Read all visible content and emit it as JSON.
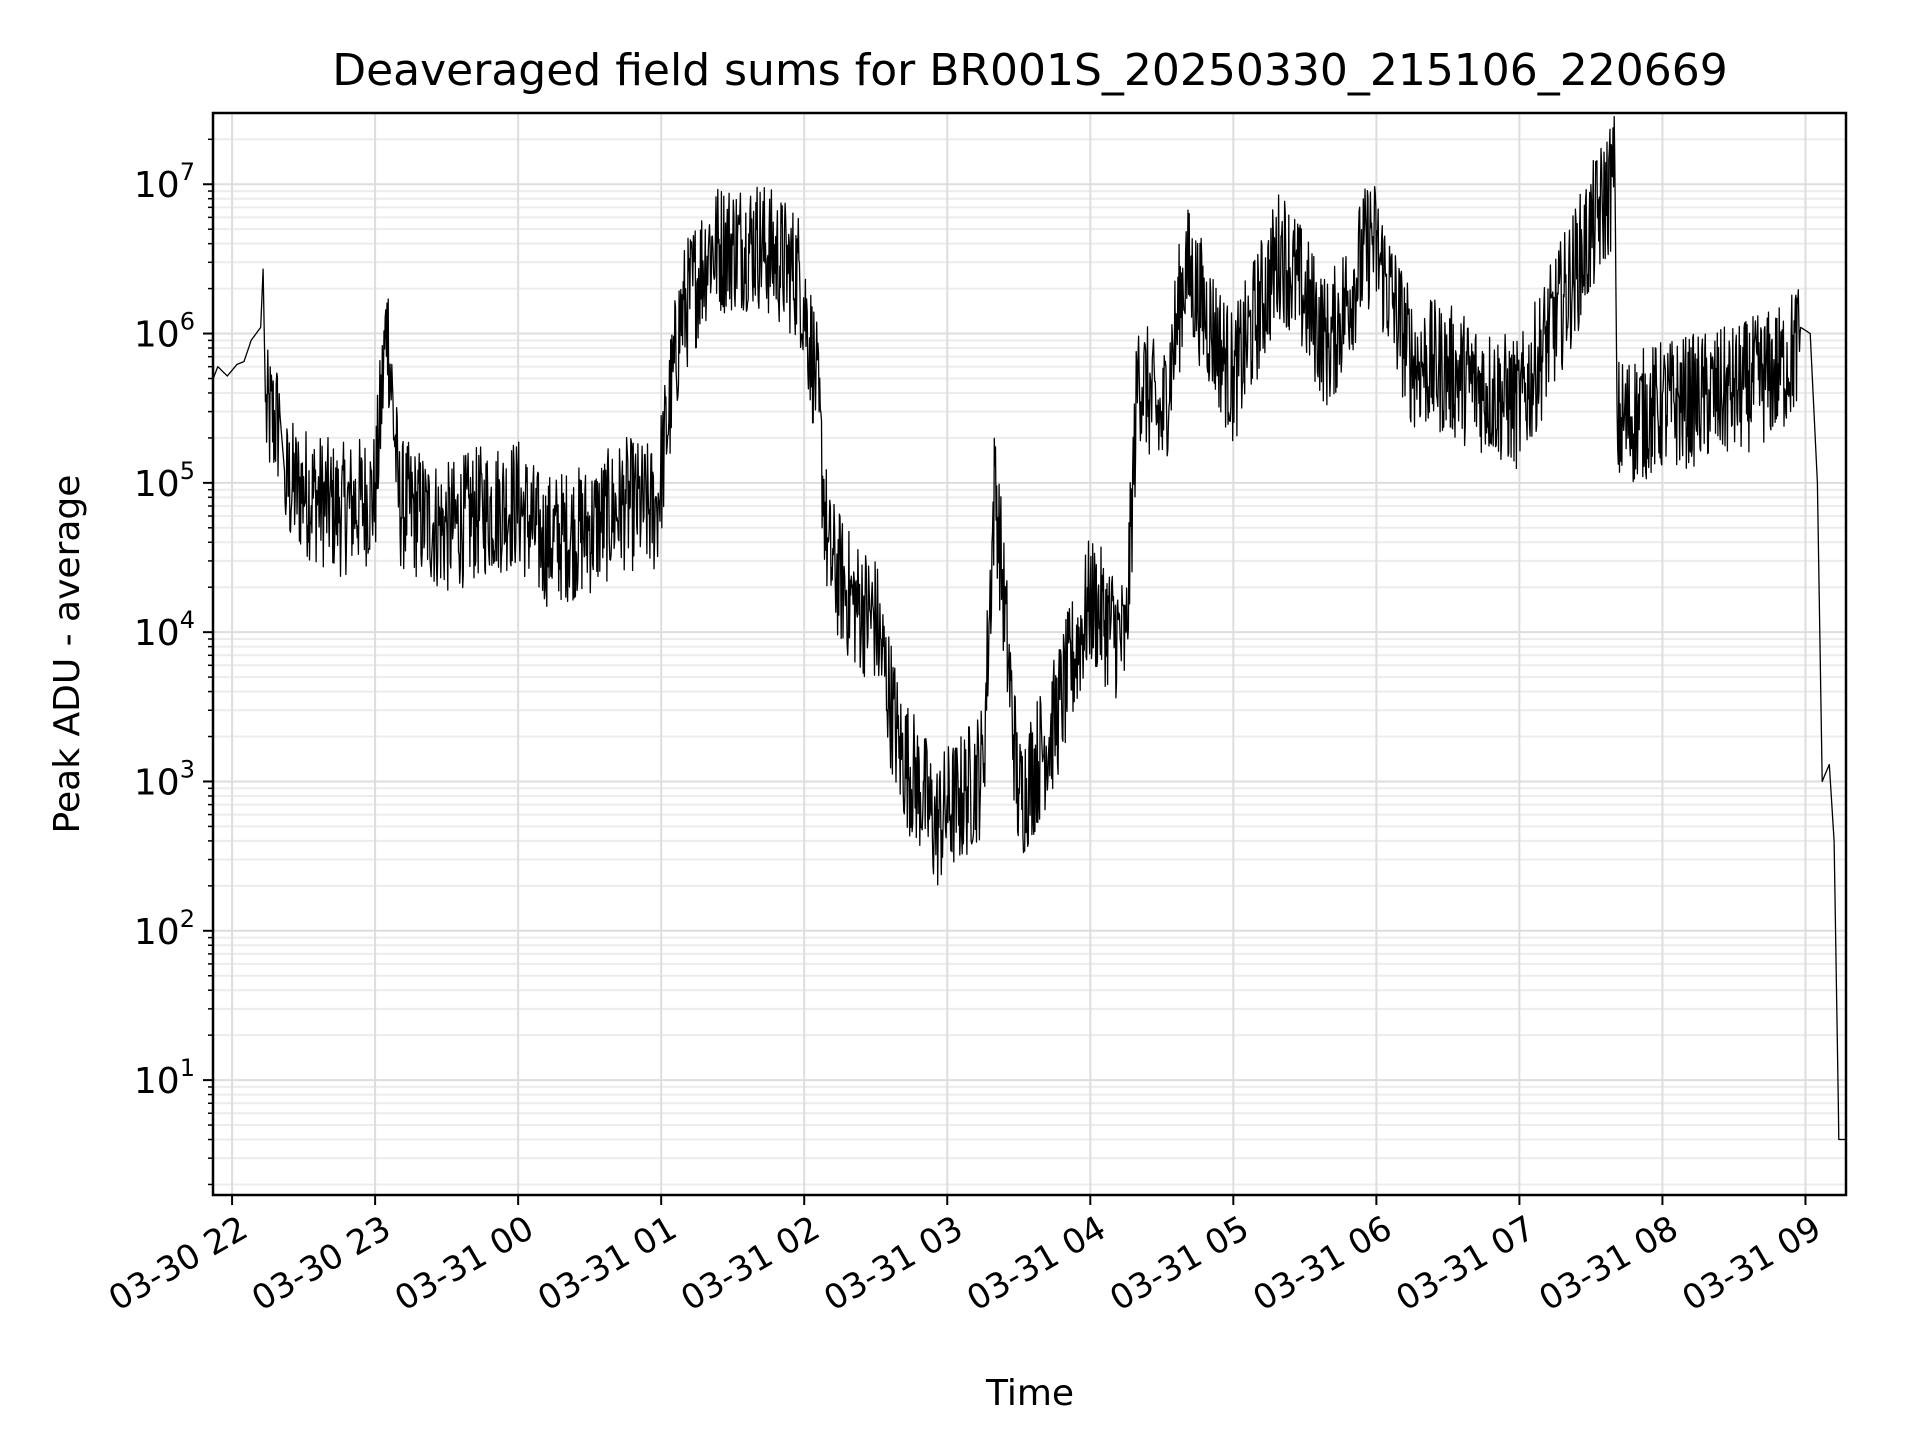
{
  "chart_data": {
    "type": "line",
    "title": "Deaveraged field sums for BR001S_20250330_215106_220669",
    "xlabel": "Time",
    "ylabel": "Peak ADU - average",
    "yscale": "log",
    "grid": true,
    "line_color": "#000000",
    "x_tick_labels": [
      "03-30 22",
      "03-30 23",
      "03-31 00",
      "03-31 01",
      "03-31 02",
      "03-31 03",
      "03-31 04",
      "03-31 05",
      "03-31 06",
      "03-31 07",
      "03-31 08",
      "03-31 09"
    ],
    "x_ticks": [
      "2025-03-30 22:00",
      "2025-03-30 23:00",
      "2025-03-31 00:00",
      "2025-03-31 01:00",
      "2025-03-31 02:00",
      "2025-03-31 03:00",
      "2025-03-31 04:00",
      "2025-03-31 05:00",
      "2025-03-31 06:00",
      "2025-03-31 07:00",
      "2025-03-31 08:00",
      "2025-03-31 09:00"
    ],
    "y_ticks": [
      {
        "base": "10",
        "exp": "1",
        "value": 10
      },
      {
        "base": "10",
        "exp": "2",
        "value": 100
      },
      {
        "base": "10",
        "exp": "3",
        "value": 1000
      },
      {
        "base": "10",
        "exp": "4",
        "value": 10000
      },
      {
        "base": "10",
        "exp": "5",
        "value": 100000
      },
      {
        "base": "10",
        "exp": "6",
        "value": 1000000
      },
      {
        "base": "10",
        "exp": "7",
        "value": 10000000
      }
    ],
    "xlim": [
      "2025-03-30 21:52",
      "2025-03-31 09:17"
    ],
    "ylim": [
      1.7,
      30000000
    ],
    "series": [
      {
        "color": "#000000",
        "points": [
          [
            "2025-03-30 21:51",
            450000
          ],
          [
            "2025-03-30 21:54",
            600000
          ],
          [
            "2025-03-30 21:58",
            520000
          ],
          [
            "2025-03-30 22:02",
            620000
          ],
          [
            "2025-03-30 22:05",
            650000
          ],
          [
            "2025-03-30 22:08",
            900000
          ],
          [
            "2025-03-30 22:12",
            1100000
          ],
          [
            "2025-03-30 22:13",
            2700000
          ],
          [
            "2025-03-30 22:14",
            350000
          ],
          [
            "2025-03-30 22:20",
            300000
          ],
          [
            "2025-03-30 22:22",
            120000
          ],
          [
            "2025-03-30 22:30",
            110000
          ],
          [
            "2025-03-30 22:45",
            80000
          ],
          [
            "2025-03-30 23:00",
            100000
          ],
          [
            "2025-03-30 23:05",
            1600000
          ],
          [
            "2025-03-30 23:10",
            90000
          ],
          [
            "2025-03-30 23:30",
            60000
          ],
          [
            "2025-03-30 23:45",
            80000
          ],
          [
            "2025-03-31 00:00",
            90000
          ],
          [
            "2025-03-31 00:10",
            50000
          ],
          [
            "2025-03-31 00:30",
            60000
          ],
          [
            "2025-03-31 00:45",
            90000
          ],
          [
            "2025-03-31 00:58",
            80000
          ],
          [
            "2025-03-31 01:08",
            1500000
          ],
          [
            "2025-03-31 01:20",
            4500000
          ],
          [
            "2025-03-31 01:40",
            5000000
          ],
          [
            "2025-03-31 01:58",
            3000000
          ],
          [
            "2025-03-31 02:05",
            600000
          ],
          [
            "2025-03-31 02:10",
            40000
          ],
          [
            "2025-03-31 02:20",
            20000
          ],
          [
            "2025-03-31 02:30",
            15000
          ],
          [
            "2025-03-31 02:40",
            2000
          ],
          [
            "2025-03-31 02:50",
            1000
          ],
          [
            "2025-03-31 02:55",
            600
          ],
          [
            "2025-03-31 03:00",
            800
          ],
          [
            "2025-03-31 03:05",
            900
          ],
          [
            "2025-03-31 03:15",
            1500
          ],
          [
            "2025-03-31 03:20",
            130000
          ],
          [
            "2025-03-31 03:30",
            900
          ],
          [
            "2025-03-31 03:45",
            3000
          ],
          [
            "2025-03-31 04:00",
            20000
          ],
          [
            "2025-03-31 04:15",
            10000
          ],
          [
            "2025-03-31 04:20",
            700000
          ],
          [
            "2025-03-31 04:30",
            300000
          ],
          [
            "2025-03-31 04:40",
            3500000
          ],
          [
            "2025-03-31 05:00",
            600000
          ],
          [
            "2025-03-31 05:20",
            4500000
          ],
          [
            "2025-03-31 05:40",
            1000000
          ],
          [
            "2025-03-31 05:58",
            5500000
          ],
          [
            "2025-03-31 06:15",
            800000
          ],
          [
            "2025-03-31 06:30",
            700000
          ],
          [
            "2025-03-31 07:00",
            400000
          ],
          [
            "2025-03-31 07:40",
            14000000
          ],
          [
            "2025-03-31 07:41",
            300000
          ],
          [
            "2025-03-31 08:00",
            400000
          ],
          [
            "2025-03-31 08:30",
            500000
          ],
          [
            "2025-03-31 08:50",
            700000
          ],
          [
            "2025-03-31 08:58",
            1100000
          ],
          [
            "2025-03-31 09:02",
            1000000
          ],
          [
            "2025-03-31 09:05",
            100000
          ],
          [
            "2025-03-31 09:07",
            1000
          ],
          [
            "2025-03-31 09:10",
            1300
          ],
          [
            "2025-03-31 09:12",
            400
          ],
          [
            "2025-03-31 09:14",
            4
          ],
          [
            "2025-03-31 09:17",
            4
          ]
        ]
      }
    ]
  }
}
